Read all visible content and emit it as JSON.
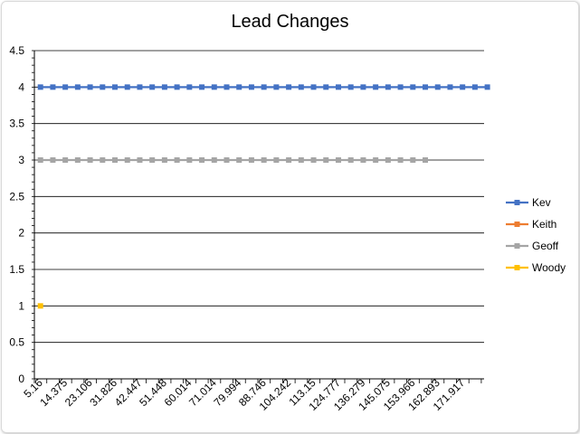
{
  "chart_data": {
    "type": "line",
    "title": "Lead Changes",
    "xlabel": "",
    "ylabel": "",
    "ylim": [
      0,
      4.5
    ],
    "y_ticks": [
      "0",
      "0.5",
      "1",
      "1.5",
      "2",
      "2.5",
      "3",
      "3.5",
      "4",
      "4.5"
    ],
    "x_tick_labels": [
      "5.16",
      "14.375",
      "23.106",
      "31.826",
      "42.447",
      "51.448",
      "60.014",
      "71.014",
      "79.994",
      "88.746",
      "104.242",
      "113.15",
      "124.777",
      "136.279",
      "145.075",
      "153.966",
      "162.893",
      "171.917"
    ],
    "grid": true,
    "legend_position": "right",
    "series": [
      {
        "name": "Kev",
        "color": "#4472c4",
        "value": 4,
        "start_index": 0,
        "end_index": 36
      },
      {
        "name": "Keith",
        "color": "#ed7d31",
        "value": null,
        "start_index": null,
        "end_index": null
      },
      {
        "name": "Geoff",
        "color": "#a5a5a5",
        "value": 3,
        "start_index": 0,
        "end_index": 31
      },
      {
        "name": "Woody",
        "color": "#ffc000",
        "value": 1,
        "start_index": 0,
        "end_index": 0
      }
    ]
  }
}
